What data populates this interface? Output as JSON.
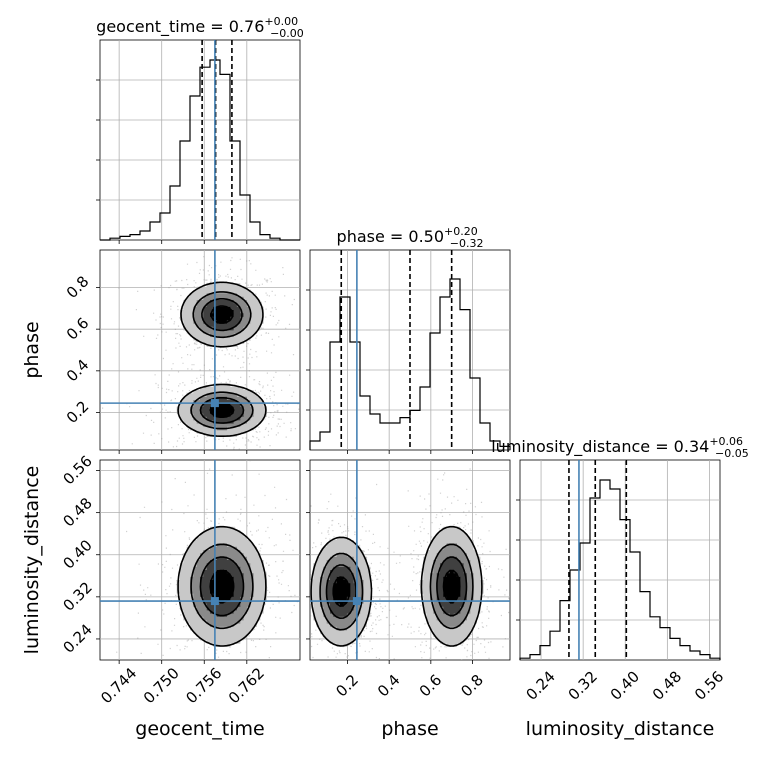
{
  "chart_data": {
    "type": "corner",
    "parameters": [
      "geocent_time",
      "phase",
      "luminosity_distance"
    ],
    "axis_labels": {
      "geocent_time": "geocent_time",
      "phase": "phase",
      "luminosity_distance": "luminosity_distance"
    },
    "ranges": {
      "geocent_time": [
        0.7413,
        0.7695
      ],
      "phase": [
        0.02,
        0.98
      ],
      "luminosity_distance": [
        0.2,
        0.58
      ]
    },
    "ticks": {
      "geocent_time": [
        0.744,
        0.75,
        0.756,
        0.762
      ],
      "phase": [
        0.2,
        0.4,
        0.6,
        0.8
      ],
      "luminosity_distance": [
        0.24,
        0.32,
        0.4,
        0.48,
        0.56
      ]
    },
    "tick_labels": {
      "geocent_time": [
        "0.744",
        "0.750",
        "0.756",
        "0.762"
      ],
      "phase": [
        "0.2",
        "0.4",
        "0.6",
        "0.8"
      ],
      "luminosity_distance": [
        "0.24",
        "0.32",
        "0.40",
        "0.48",
        "0.56"
      ]
    },
    "truths": {
      "geocent_time": 0.7575,
      "phase": 0.245,
      "luminosity_distance": 0.312
    },
    "titles": {
      "geocent_time": {
        "name": "geocent_time",
        "median": "0.76",
        "plus": "+0.00",
        "minus": "−0.00"
      },
      "phase": {
        "name": "phase",
        "median": "0.50",
        "plus": "+0.20",
        "minus": "−0.32"
      },
      "luminosity_distance": {
        "name": "luminosity_distance",
        "median": "0.34",
        "plus": "+0.06",
        "minus": "−0.05"
      }
    },
    "quantiles": {
      "geocent_time": [
        0.7557,
        0.7576,
        0.7599
      ],
      "phase": [
        0.17,
        0.5,
        0.7
      ],
      "luminosity_distance": [
        0.293,
        0.343,
        0.402
      ]
    },
    "histograms": {
      "geocent_time": [
        0.0,
        0.01,
        0.02,
        0.03,
        0.05,
        0.1,
        0.15,
        0.3,
        0.55,
        0.8,
        0.96,
        1.0,
        0.92,
        0.55,
        0.25,
        0.1,
        0.03,
        0.01,
        0.0,
        0.0
      ],
      "phase": [
        0.05,
        0.1,
        0.6,
        0.85,
        0.6,
        0.3,
        0.2,
        0.15,
        0.15,
        0.18,
        0.22,
        0.35,
        0.65,
        0.85,
        0.95,
        0.78,
        0.4,
        0.15,
        0.05,
        0.02
      ],
      "luminosity_distance": [
        0.01,
        0.03,
        0.08,
        0.16,
        0.33,
        0.5,
        0.65,
        0.9,
        1.0,
        0.95,
        0.78,
        0.6,
        0.38,
        0.24,
        0.18,
        0.12,
        0.08,
        0.05,
        0.03,
        0.01
      ]
    },
    "grid": true,
    "panels": [
      {
        "x": "geocent_time",
        "y": "phase",
        "blobs": [
          {
            "mx": 0.7585,
            "my": 0.67,
            "sx": 0.0028,
            "sy": 0.075
          },
          {
            "mx": 0.7585,
            "my": 0.21,
            "sx": 0.003,
            "sy": 0.06
          }
        ]
      },
      {
        "x": "geocent_time",
        "y": "luminosity_distance",
        "blobs": [
          {
            "mx": 0.7585,
            "my": 0.34,
            "sx": 0.003,
            "sy": 0.055
          }
        ]
      },
      {
        "x": "phase",
        "y": "luminosity_distance",
        "blobs": [
          {
            "mx": 0.17,
            "my": 0.33,
            "sx": 0.07,
            "sy": 0.05
          },
          {
            "mx": 0.7,
            "my": 0.34,
            "sx": 0.07,
            "sy": 0.055
          }
        ]
      }
    ],
    "contour_levels": [
      0.12,
      0.35,
      0.6,
      0.86
    ],
    "colors": {
      "truth": "#4682b4",
      "hist": "#000000",
      "grid": "#b0b0b0"
    }
  }
}
